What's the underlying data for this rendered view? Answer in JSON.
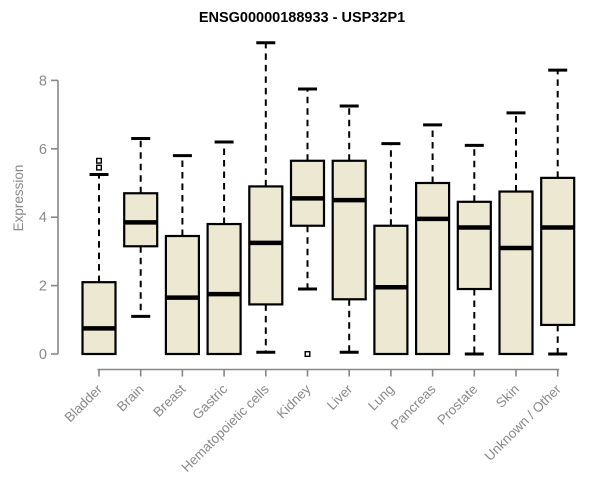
{
  "chart_data": {
    "type": "boxplot",
    "title": "ENSG00000188933 - USP32P1",
    "xlabel": "",
    "ylabel": "Expression",
    "ylim": [
      0,
      8
    ],
    "yticks": [
      0,
      2,
      4,
      6,
      8
    ],
    "grid": false,
    "legend_position": "none",
    "x_label_rotation_deg": 45,
    "categories": [
      "Bladder",
      "Brain",
      "Breast",
      "Gastric",
      "Hematopoietic cells",
      "Kidney",
      "Liver",
      "Lung",
      "Pancreas",
      "Prostate",
      "Skin",
      "Unknown / Other"
    ],
    "boxes": [
      {
        "category": "Bladder",
        "low": 0,
        "q1": 0,
        "median": 0.75,
        "q3": 2.1,
        "high": 5.25,
        "outliers": [
          5.45,
          5.65
        ]
      },
      {
        "category": "Brain",
        "low": 1.1,
        "q1": 3.15,
        "median": 3.85,
        "q3": 4.7,
        "high": 6.3,
        "outliers": []
      },
      {
        "category": "Breast",
        "low": 0,
        "q1": 0,
        "median": 1.65,
        "q3": 3.45,
        "high": 5.8,
        "outliers": []
      },
      {
        "category": "Gastric",
        "low": 0,
        "q1": 0,
        "median": 1.75,
        "q3": 3.8,
        "high": 6.2,
        "outliers": []
      },
      {
        "category": "Hematopoietic cells",
        "low": 0.05,
        "q1": 1.45,
        "median": 3.25,
        "q3": 4.9,
        "high": 9.1,
        "outliers": []
      },
      {
        "category": "Kidney",
        "low": 1.9,
        "q1": 3.75,
        "median": 4.55,
        "q3": 5.65,
        "high": 7.75,
        "outliers": [
          0
        ]
      },
      {
        "category": "Liver",
        "low": 0.05,
        "q1": 1.6,
        "median": 4.5,
        "q3": 5.65,
        "high": 7.25,
        "outliers": []
      },
      {
        "category": "Lung",
        "low": 0,
        "q1": 0,
        "median": 1.95,
        "q3": 3.75,
        "high": 6.15,
        "outliers": []
      },
      {
        "category": "Pancreas",
        "low": 0,
        "q1": 0,
        "median": 3.95,
        "q3": 5.0,
        "high": 6.7,
        "outliers": []
      },
      {
        "category": "Prostate",
        "low": 0,
        "q1": 1.9,
        "median": 3.7,
        "q3": 4.45,
        "high": 6.1,
        "outliers": []
      },
      {
        "category": "Skin",
        "low": 0,
        "q1": 0,
        "median": 3.1,
        "q3": 4.75,
        "high": 7.05,
        "outliers": []
      },
      {
        "category": "Unknown / Other",
        "low": 0,
        "q1": 0.85,
        "median": 3.7,
        "q3": 5.15,
        "high": 8.3,
        "outliers": []
      }
    ],
    "colors": {
      "box_fill": "#EDE8D1",
      "box_border": "#000000",
      "median_line": "#000000",
      "whisker": "#000000",
      "outlier_fill": "#ffffff",
      "axis": "#878787",
      "tick_label": "#898989",
      "title": "#000000",
      "background": "#ffffff"
    }
  }
}
